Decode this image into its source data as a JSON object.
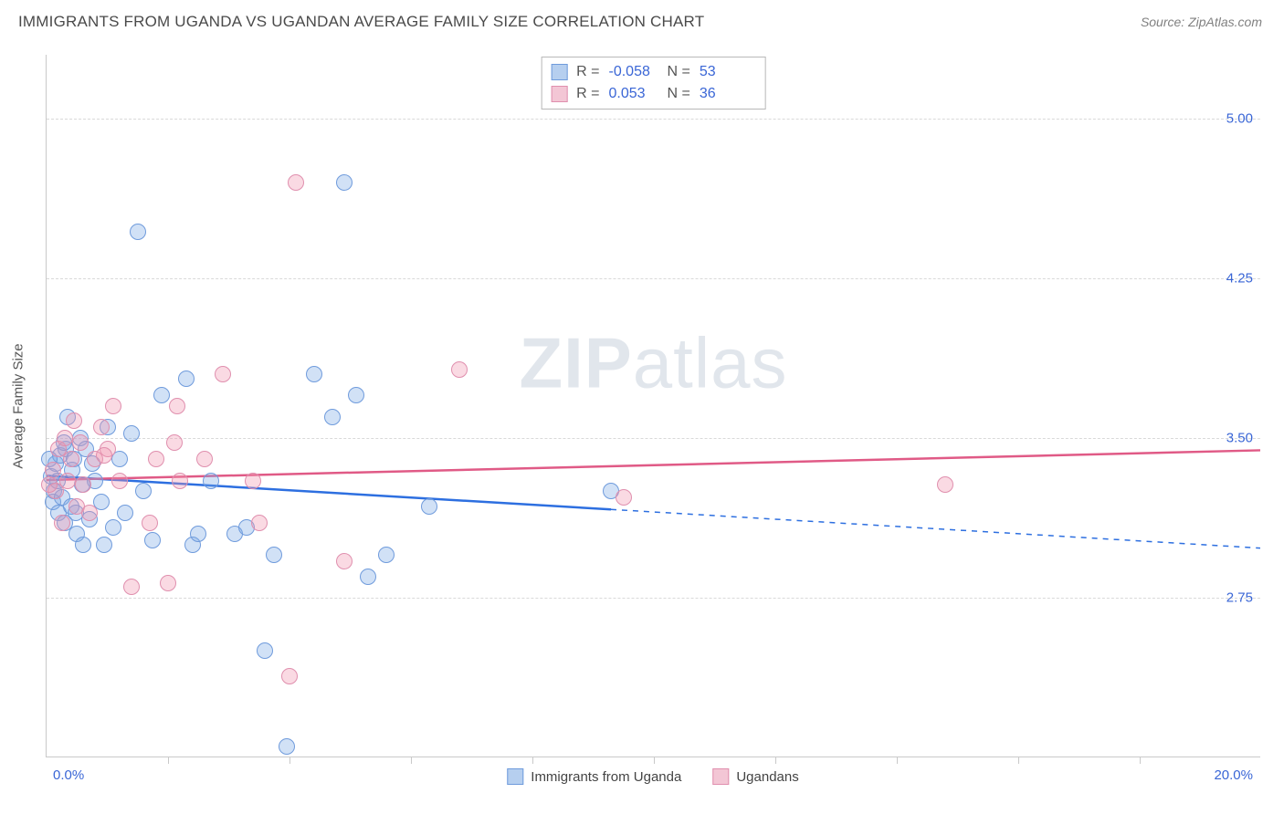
{
  "title": "IMMIGRANTS FROM UGANDA VS UGANDAN AVERAGE FAMILY SIZE CORRELATION CHART",
  "source": "Source: ZipAtlas.com",
  "watermark_bold": "ZIP",
  "watermark_rest": "atlas",
  "chart": {
    "type": "scatter",
    "ylabel": "Average Family Size",
    "xlim": [
      0,
      20
    ],
    "ylim": [
      2.0,
      5.3
    ],
    "x_min_label": "0.0%",
    "x_max_label": "20.0%",
    "yticks": [
      2.75,
      3.5,
      4.25,
      5.0
    ],
    "ytick_labels": [
      "2.75",
      "3.50",
      "4.25",
      "5.00"
    ],
    "xticks": [
      2,
      4,
      6,
      8,
      10,
      12,
      14,
      16,
      18
    ],
    "background_color": "#ffffff",
    "grid_color": "#d9d9d9",
    "axis_color": "#c9c9c9",
    "label_color": "#3a66d6",
    "marker_radius": 9,
    "marker_stroke": 1.5,
    "series": [
      {
        "name": "Immigrants from Uganda",
        "fill": "rgba(124,169,230,0.35)",
        "stroke": "#6f9bdc",
        "legend_fill": "#b6cfef",
        "legend_stroke": "#6f9bdc",
        "r_label": "R =",
        "r_value": "-0.058",
        "n_label": "N =",
        "n_value": "53",
        "trend": {
          "x1": 0,
          "y1": 3.32,
          "x2": 20,
          "y2": 2.98,
          "color": "#2d6fe0",
          "solid_until_x": 9.3
        },
        "points": [
          [
            0.08,
            3.32
          ],
          [
            0.12,
            3.25
          ],
          [
            0.1,
            3.2
          ],
          [
            0.15,
            3.38
          ],
          [
            0.2,
            3.15
          ],
          [
            0.22,
            3.42
          ],
          [
            0.18,
            3.3
          ],
          [
            0.3,
            3.1
          ],
          [
            0.32,
            3.45
          ],
          [
            0.25,
            3.22
          ],
          [
            0.4,
            3.18
          ],
          [
            0.45,
            3.4
          ],
          [
            0.5,
            3.05
          ],
          [
            0.55,
            3.5
          ],
          [
            0.58,
            3.28
          ],
          [
            1.0,
            3.55
          ],
          [
            0.6,
            3.0
          ],
          [
            0.7,
            3.12
          ],
          [
            0.65,
            3.45
          ],
          [
            0.8,
            3.3
          ],
          [
            0.9,
            3.2
          ],
          [
            1.1,
            3.08
          ],
          [
            1.2,
            3.4
          ],
          [
            1.4,
            3.52
          ],
          [
            1.5,
            4.47
          ],
          [
            1.75,
            3.02
          ],
          [
            1.9,
            3.7
          ],
          [
            2.3,
            3.78
          ],
          [
            2.4,
            3.0
          ],
          [
            2.5,
            3.05
          ],
          [
            2.7,
            3.3
          ],
          [
            3.1,
            3.05
          ],
          [
            3.3,
            3.08
          ],
          [
            3.6,
            2.5
          ],
          [
            3.75,
            2.95
          ],
          [
            3.95,
            2.05
          ],
          [
            4.4,
            3.8
          ],
          [
            4.7,
            3.6
          ],
          [
            4.9,
            4.7
          ],
          [
            5.1,
            3.7
          ],
          [
            5.6,
            2.95
          ],
          [
            5.3,
            2.85
          ],
          [
            6.3,
            3.18
          ],
          [
            9.3,
            3.25
          ],
          [
            0.35,
            3.6
          ],
          [
            0.42,
            3.35
          ],
          [
            0.75,
            3.38
          ],
          [
            0.95,
            3.0
          ],
          [
            1.3,
            3.15
          ],
          [
            1.6,
            3.25
          ],
          [
            0.28,
            3.48
          ],
          [
            0.05,
            3.4
          ],
          [
            0.48,
            3.15
          ]
        ]
      },
      {
        "name": "Ugandans",
        "fill": "rgba(240,150,175,0.35)",
        "stroke": "#e08fae",
        "legend_fill": "#f3c6d5",
        "legend_stroke": "#e08fae",
        "r_label": "R =",
        "r_value": "0.053",
        "n_label": "N =",
        "n_value": "36",
        "trend": {
          "x1": 0,
          "y1": 3.3,
          "x2": 20,
          "y2": 3.44,
          "color": "#e05a86",
          "solid_until_x": 20
        },
        "points": [
          [
            0.1,
            3.35
          ],
          [
            0.15,
            3.25
          ],
          [
            0.2,
            3.45
          ],
          [
            0.25,
            3.1
          ],
          [
            0.3,
            3.5
          ],
          [
            0.35,
            3.3
          ],
          [
            0.4,
            3.4
          ],
          [
            0.5,
            3.18
          ],
          [
            0.55,
            3.48
          ],
          [
            0.6,
            3.28
          ],
          [
            0.7,
            3.15
          ],
          [
            0.8,
            3.4
          ],
          [
            0.9,
            3.55
          ],
          [
            1.0,
            3.45
          ],
          [
            1.1,
            3.65
          ],
          [
            1.2,
            3.3
          ],
          [
            1.4,
            2.8
          ],
          [
            1.7,
            3.1
          ],
          [
            2.0,
            2.82
          ],
          [
            2.1,
            3.48
          ],
          [
            2.2,
            3.3
          ],
          [
            2.6,
            3.4
          ],
          [
            2.9,
            3.8
          ],
          [
            3.5,
            3.1
          ],
          [
            4.0,
            2.38
          ],
          [
            4.1,
            4.7
          ],
          [
            4.9,
            2.92
          ],
          [
            6.8,
            3.82
          ],
          [
            9.5,
            3.22
          ],
          [
            14.8,
            3.28
          ],
          [
            2.15,
            3.65
          ],
          [
            0.45,
            3.58
          ],
          [
            0.95,
            3.42
          ],
          [
            1.8,
            3.4
          ],
          [
            3.4,
            3.3
          ],
          [
            0.05,
            3.28
          ]
        ]
      }
    ]
  }
}
